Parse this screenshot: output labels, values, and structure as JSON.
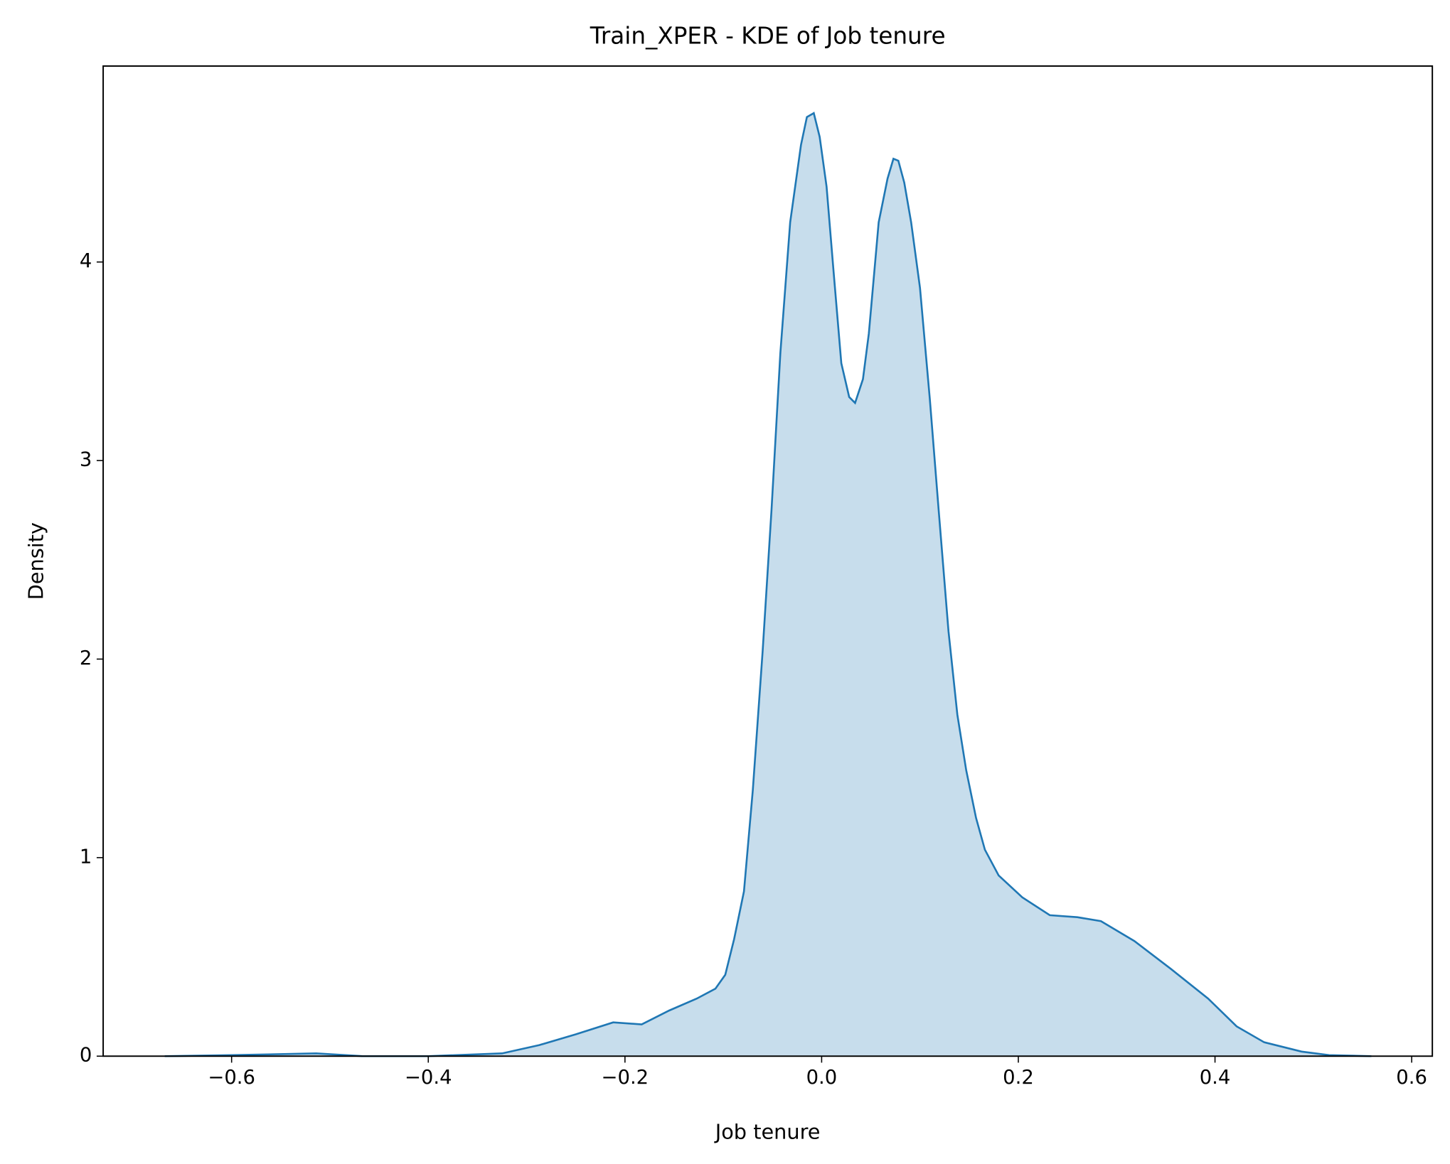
{
  "chart_data": {
    "type": "area",
    "title": "Train_XPER - KDE of Job tenure",
    "x_label": "Job tenure",
    "y_label": "Density",
    "color": "#1f77b4",
    "fill_opacity": 0.25,
    "x": [
      -0.668,
      -0.6,
      -0.514,
      -0.467,
      -0.4,
      -0.325,
      -0.287,
      -0.25,
      -0.212,
      -0.183,
      -0.155,
      -0.127,
      -0.108,
      -0.098,
      -0.089,
      -0.079,
      -0.07,
      -0.06,
      -0.051,
      -0.042,
      -0.032,
      -0.021,
      -0.015,
      -0.008,
      -0.002,
      0.005,
      0.012,
      0.02,
      0.028,
      0.034,
      0.042,
      0.048,
      0.058,
      0.067,
      0.073,
      0.078,
      0.084,
      0.091,
      0.1,
      0.11,
      0.119,
      0.129,
      0.138,
      0.147,
      0.157,
      0.166,
      0.18,
      0.204,
      0.232,
      0.26,
      0.284,
      0.318,
      0.355,
      0.393,
      0.422,
      0.45,
      0.488,
      0.516,
      0.559
    ],
    "values": [
      0,
      0.005,
      0.014,
      0,
      0,
      0.014,
      0.056,
      0.11,
      0.17,
      0.16,
      0.23,
      0.29,
      0.34,
      0.41,
      0.59,
      0.83,
      1.34,
      2.04,
      2.75,
      3.54,
      4.2,
      4.59,
      4.73,
      4.75,
      4.63,
      4.38,
      3.96,
      3.49,
      3.32,
      3.29,
      3.41,
      3.64,
      4.2,
      4.42,
      4.52,
      4.51,
      4.4,
      4.2,
      3.87,
      3.31,
      2.75,
      2.14,
      1.72,
      1.44,
      1.2,
      1.04,
      0.91,
      0.8,
      0.71,
      0.7,
      0.68,
      0.58,
      0.44,
      0.29,
      0.15,
      0.07,
      0.023,
      0.005,
      0
    ],
    "xlim": [
      -0.7306,
      0.621
    ],
    "ylim": [
      0,
      4.987
    ],
    "xticks": [
      {
        "value": -0.6,
        "label": "−0.6"
      },
      {
        "value": -0.4,
        "label": "−0.4"
      },
      {
        "value": -0.2,
        "label": "−0.2"
      },
      {
        "value": 0,
        "label": "0.0"
      },
      0.2,
      0.4,
      0.6
    ],
    "yticks": [
      0,
      1,
      2,
      3,
      4
    ]
  }
}
